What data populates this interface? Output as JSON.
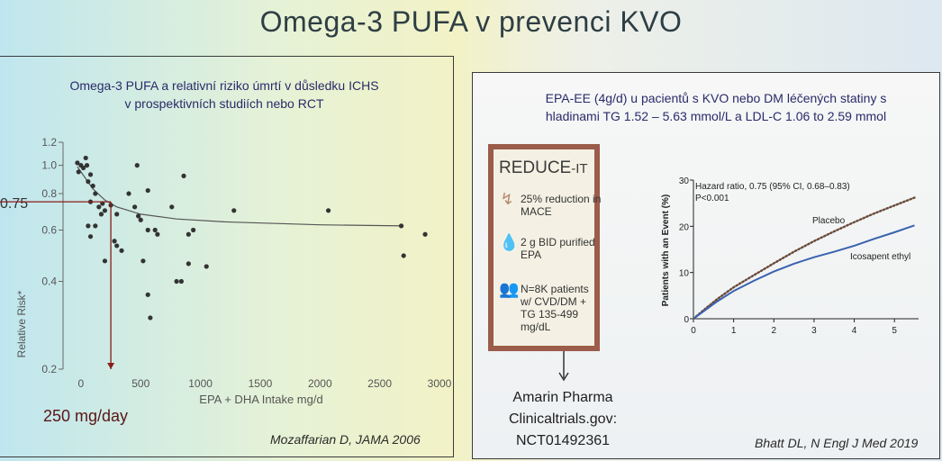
{
  "slide": {
    "title": "Omega-3 PUFA v prevenci KVO"
  },
  "left_panel": {
    "title_line1": "Omega-3 PUFA a relativní riziko úmrtí v důsledku ICHS",
    "title_line2": "v prospektivních studiích nebo RCT",
    "callout_y": "0.75",
    "callout_x": "250 mg/day",
    "citation": "Mozaffarian D, JAMA 2006"
  },
  "right_panel": {
    "title_line1": "EPA-EE (4g/d) u pacientů s KVO nebo DM léčených statiny s",
    "title_line2": "hladinami TG 1.52 – 5.63 mmol/L a LDL-C 1.06 to 2.59 mmol",
    "citation": "Bhatt DL, N Engl J Med 2019",
    "reduce_it": {
      "name": "REDUCE",
      "name_suffix": "-IT",
      "items": [
        {
          "icon": "downward-arrow-icon",
          "text": "25% reduction in MACE"
        },
        {
          "icon": "drop-icon",
          "text": "2 g BID purified EPA"
        },
        {
          "icon": "people-icon",
          "text": "N=8K patients w/ CVD/DM + TG 135-499 mg/dL"
        }
      ]
    },
    "sponsor": {
      "line1": "Amarin Pharma",
      "line2": "Clinicaltrials.gov:",
      "line3": "NCT01492361"
    }
  },
  "chart_data": [
    {
      "type": "scatter",
      "title": "",
      "xlabel": "EPA + DHA Intake mg/d",
      "ylabel": "Relative Risk*",
      "xlim": [
        -150,
        3000
      ],
      "ylim": [
        0.2,
        1.2
      ],
      "y_scale": "log",
      "x_ticks": [
        0,
        500,
        1000,
        1500,
        2000,
        2500,
        3000
      ],
      "y_ticks": [
        0.2,
        0.4,
        0.6,
        0.8,
        1.0,
        1.2
      ],
      "y_tick_labels": [
        "0.2",
        "0.4",
        "0.6",
        "0.8",
        "1.0",
        "1.2"
      ],
      "points": [
        [
          -30,
          1.02
        ],
        [
          0,
          1.0
        ],
        [
          50,
          1.0
        ],
        [
          -20,
          0.95
        ],
        [
          40,
          1.06
        ],
        [
          20,
          0.98
        ],
        [
          80,
          0.93
        ],
        [
          60,
          0.88
        ],
        [
          100,
          0.85
        ],
        [
          120,
          0.8
        ],
        [
          80,
          0.75
        ],
        [
          150,
          0.72
        ],
        [
          180,
          0.74
        ],
        [
          200,
          0.7
        ],
        [
          250,
          0.73
        ],
        [
          300,
          0.68
        ],
        [
          60,
          0.62
        ],
        [
          80,
          0.57
        ],
        [
          120,
          0.62
        ],
        [
          170,
          0.68
        ],
        [
          200,
          0.47
        ],
        [
          280,
          0.55
        ],
        [
          300,
          0.53
        ],
        [
          340,
          0.51
        ],
        [
          400,
          0.8
        ],
        [
          450,
          0.72
        ],
        [
          470,
          1.0
        ],
        [
          480,
          0.67
        ],
        [
          500,
          0.65
        ],
        [
          560,
          0.82
        ],
        [
          560,
          0.6
        ],
        [
          520,
          0.47
        ],
        [
          560,
          0.36
        ],
        [
          580,
          0.3
        ],
        [
          620,
          0.6
        ],
        [
          640,
          0.58
        ],
        [
          760,
          0.72
        ],
        [
          800,
          0.4
        ],
        [
          840,
          0.4
        ],
        [
          860,
          0.92
        ],
        [
          900,
          0.58
        ],
        [
          940,
          0.6
        ],
        [
          900,
          0.46
        ],
        [
          1050,
          0.45
        ],
        [
          1280,
          0.7
        ],
        [
          2070,
          0.7
        ],
        [
          2680,
          0.62
        ],
        [
          2700,
          0.49
        ],
        [
          2880,
          0.58
        ]
      ],
      "curve": [
        [
          -30,
          0.99
        ],
        [
          0,
          0.95
        ],
        [
          100,
          0.83
        ],
        [
          200,
          0.76
        ],
        [
          300,
          0.72
        ],
        [
          500,
          0.68
        ],
        [
          800,
          0.655
        ],
        [
          1200,
          0.64
        ],
        [
          2000,
          0.625
        ],
        [
          2700,
          0.62
        ]
      ],
      "annotation_x": 250,
      "annotation_y": 0.75
    },
    {
      "type": "line",
      "title": "",
      "xlabel": "",
      "ylabel": "Patients with an Event (%)",
      "xlim": [
        0,
        5.6
      ],
      "ylim": [
        0,
        30
      ],
      "x_ticks": [
        0,
        1,
        2,
        3,
        4,
        5
      ],
      "y_ticks": [
        0,
        10,
        20,
        30
      ],
      "annotation_line1": "Hazard ratio, 0.75 (95% CI, 0.68–0.83)",
      "annotation_line2": "P<0.001",
      "series": [
        {
          "name": "Placebo",
          "style": "dotted",
          "color": "#6a4a3a",
          "x": [
            0,
            0.3,
            0.6,
            1,
            1.5,
            2,
            2.5,
            3,
            3.5,
            4,
            4.5,
            5,
            5.5
          ],
          "y": [
            0,
            2.2,
            4.3,
            6.8,
            9.4,
            12.0,
            14.5,
            16.8,
            18.9,
            20.9,
            22.8,
            24.5,
            26.2
          ]
        },
        {
          "name": "Icosapent ethyl",
          "style": "solid",
          "color": "#3a62b0",
          "x": [
            0,
            0.3,
            0.6,
            1,
            1.5,
            2,
            2.5,
            3,
            3.5,
            4,
            4.5,
            5,
            5.5
          ],
          "y": [
            0,
            1.9,
            3.8,
            6.0,
            8.2,
            10.2,
            11.9,
            13.3,
            14.5,
            15.8,
            17.3,
            18.7,
            20.2
          ]
        }
      ]
    }
  ]
}
